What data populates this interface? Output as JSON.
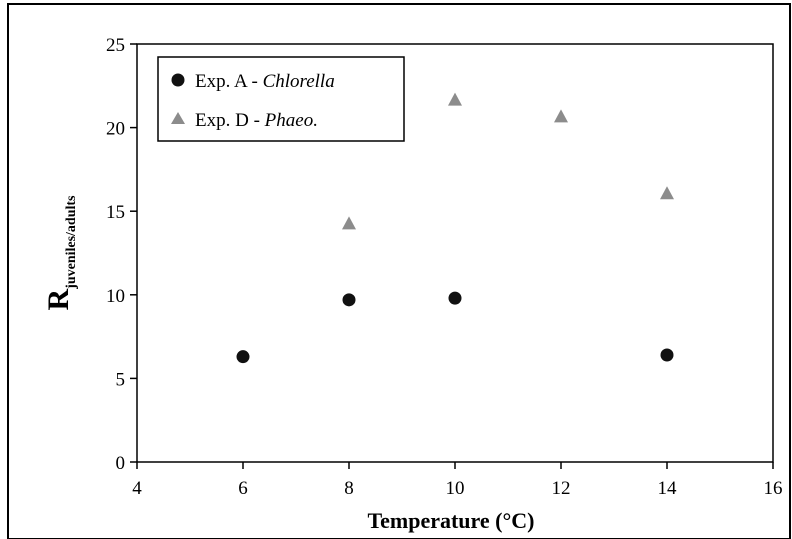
{
  "chart_data": {
    "type": "scatter",
    "xlabel": "Temperature (°C)",
    "ylabel_main": "R",
    "ylabel_sub": "juveniles/adults",
    "xlim": [
      4,
      16
    ],
    "ylim": [
      0,
      25
    ],
    "xticks": [
      "4",
      "6",
      "8",
      "10",
      "12",
      "14",
      "16"
    ],
    "yticks": [
      "0",
      "5",
      "10",
      "15",
      "20",
      "25"
    ],
    "grid": false,
    "legend_position": "top-left",
    "series": [
      {
        "name_prefix": "Exp. A - ",
        "name_italic": "Chlorella",
        "marker": "circle",
        "color": "#111111",
        "x": [
          6,
          8,
          10,
          14
        ],
        "y": [
          6.3,
          9.7,
          9.8,
          6.4
        ]
      },
      {
        "name_prefix": "Exp. D - ",
        "name_italic": "Phaeo.",
        "marker": "triangle",
        "color": "#8c8c8c",
        "x": [
          8,
          10,
          12,
          14
        ],
        "y": [
          14.3,
          21.7,
          20.7,
          16.1
        ]
      }
    ]
  }
}
